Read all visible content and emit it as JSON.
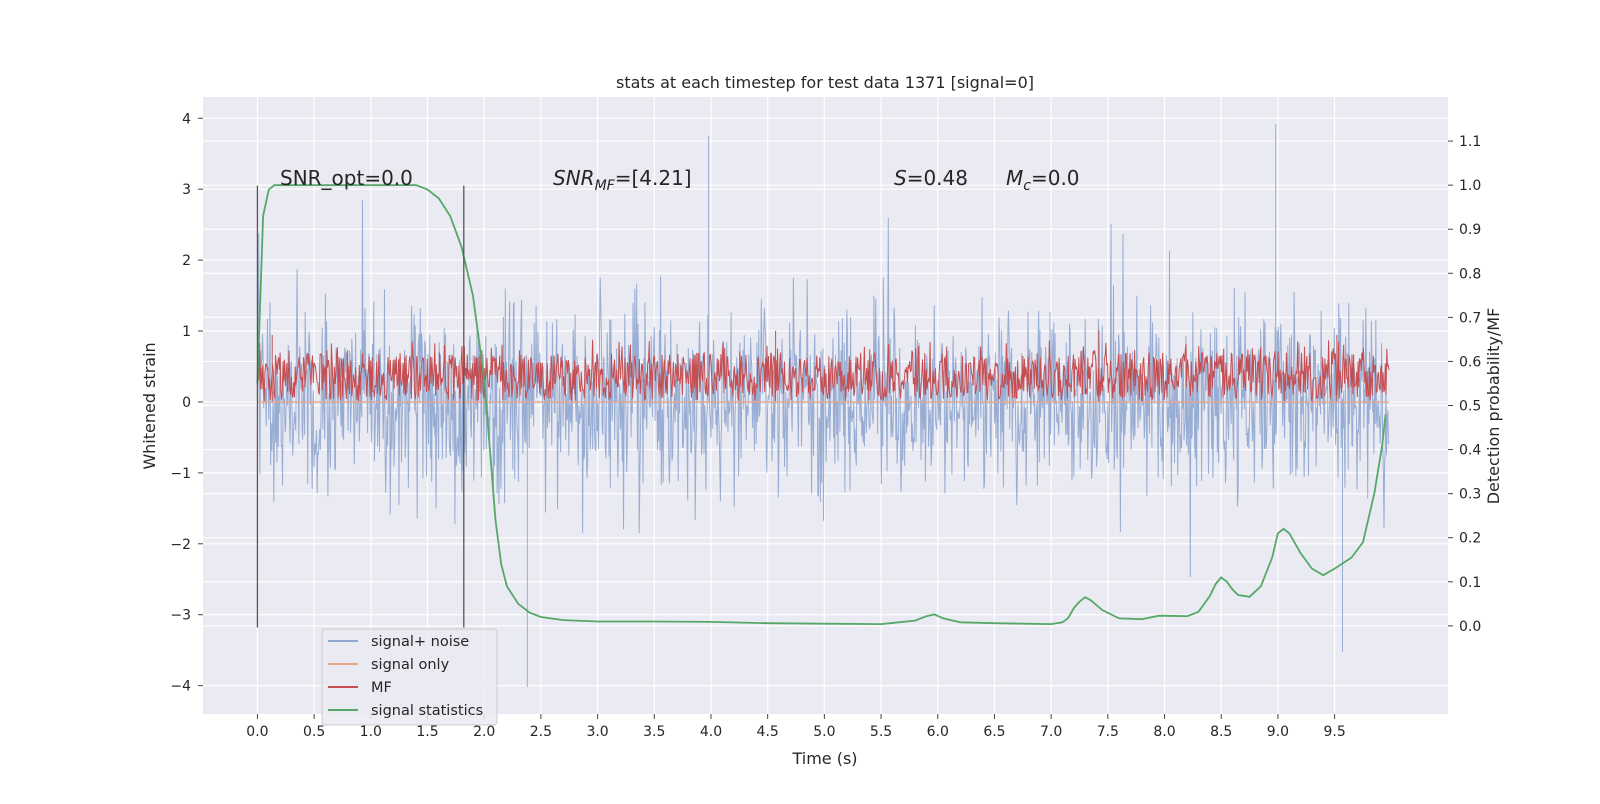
{
  "chart_data": {
    "type": "line",
    "title": "stats at each timestep for test data 1371 [signal=0]",
    "xlabel": "Time (s)",
    "ylabel_left": "Whitened strain",
    "ylabel_right": "Detection probability/MF",
    "xlim": [
      -0.48,
      10.5
    ],
    "ylim_left": [
      -4.4,
      4.3
    ],
    "ylim_right": [
      -0.2,
      1.2
    ],
    "x_ticks": [
      "0.0",
      "0.5",
      "1.0",
      "1.5",
      "2.0",
      "2.5",
      "3.0",
      "3.5",
      "4.0",
      "4.5",
      "5.0",
      "5.5",
      "6.0",
      "6.5",
      "7.0",
      "7.5",
      "8.0",
      "8.5",
      "9.0",
      "9.5"
    ],
    "y_ticks_left": [
      "4",
      "3",
      "2",
      "1",
      "0",
      "−1",
      "−2",
      "−3",
      "−4"
    ],
    "y_ticks_right": [
      "1.1",
      "1.0",
      "0.9",
      "0.8",
      "0.7",
      "0.6",
      "0.5",
      "0.4",
      "0.3",
      "0.2",
      "0.1",
      "0.0"
    ],
    "grid": true,
    "legend_position": "lower-left",
    "annotations": {
      "snr_opt": "SNR_opt=0.0",
      "snr_mf_sym": "SNR",
      "snr_mf_sub": "MF",
      "snr_mf_val": "=[4.21]",
      "s_sym": "S",
      "s_val": "=0.48",
      "mc_sym": "M",
      "mc_sub": "c",
      "mc_val": "=0.0"
    },
    "vertical_markers_s": [
      0.0,
      1.82
    ],
    "series": [
      {
        "name": "signal+ noise",
        "color": "#8fa6cf",
        "description": "noise band approx -1.5..1.5, spikes to 3.9 / -4.0",
        "band": [
          -1.5,
          1.5
        ],
        "peaks": [
          [
            3.98,
            3.75
          ],
          [
            8.98,
            3.92
          ],
          [
            2.38,
            -4.02
          ],
          [
            9.57,
            -3.52
          ]
        ]
      },
      {
        "name": "signal only",
        "color": "#e8a58b",
        "values_note": "flat",
        "y": 0.0
      },
      {
        "name": "MF",
        "color": "#c44e52",
        "axis": "right",
        "band": [
          0.51,
          0.62
        ],
        "peaks": [
          [
            0.13,
            0.66
          ],
          [
            4.57,
            0.67
          ],
          [
            7.42,
            0.67
          ],
          [
            9.52,
            0.66
          ]
        ]
      },
      {
        "name": "signal statistics",
        "color": "#55a868",
        "axis": "right",
        "x": [
          0.0,
          0.05,
          0.1,
          0.15,
          0.2,
          0.3,
          0.5,
          0.8,
          1.0,
          1.2,
          1.4,
          1.5,
          1.6,
          1.7,
          1.8,
          1.9,
          2.0,
          2.05,
          2.1,
          2.15,
          2.2,
          2.3,
          2.4,
          2.5,
          2.7,
          3.0,
          3.5,
          4.0,
          4.5,
          5.0,
          5.5,
          5.8,
          5.9,
          5.97,
          6.05,
          6.2,
          6.5,
          7.0,
          7.1,
          7.15,
          7.2,
          7.25,
          7.3,
          7.35,
          7.45,
          7.6,
          7.8,
          7.95,
          8.2,
          8.3,
          8.4,
          8.45,
          8.5,
          8.55,
          8.6,
          8.65,
          8.75,
          8.85,
          8.95,
          9.0,
          9.05,
          9.1,
          9.2,
          9.3,
          9.4,
          9.5,
          9.65,
          9.75,
          9.85,
          9.92,
          9.95
        ],
        "y": [
          0.55,
          0.93,
          0.99,
          1.0,
          1.0,
          1.0,
          1.0,
          1.0,
          1.0,
          1.0,
          1.0,
          0.99,
          0.97,
          0.93,
          0.86,
          0.75,
          0.56,
          0.4,
          0.24,
          0.14,
          0.09,
          0.05,
          0.03,
          0.02,
          0.013,
          0.01,
          0.01,
          0.009,
          0.006,
          0.005,
          0.004,
          0.012,
          0.022,
          0.026,
          0.017,
          0.008,
          0.006,
          0.004,
          0.008,
          0.018,
          0.04,
          0.055,
          0.065,
          0.058,
          0.036,
          0.017,
          0.015,
          0.023,
          0.022,
          0.032,
          0.068,
          0.095,
          0.11,
          0.1,
          0.082,
          0.07,
          0.066,
          0.09,
          0.155,
          0.21,
          0.22,
          0.21,
          0.165,
          0.13,
          0.115,
          0.13,
          0.155,
          0.19,
          0.3,
          0.41,
          0.48
        ]
      }
    ]
  }
}
